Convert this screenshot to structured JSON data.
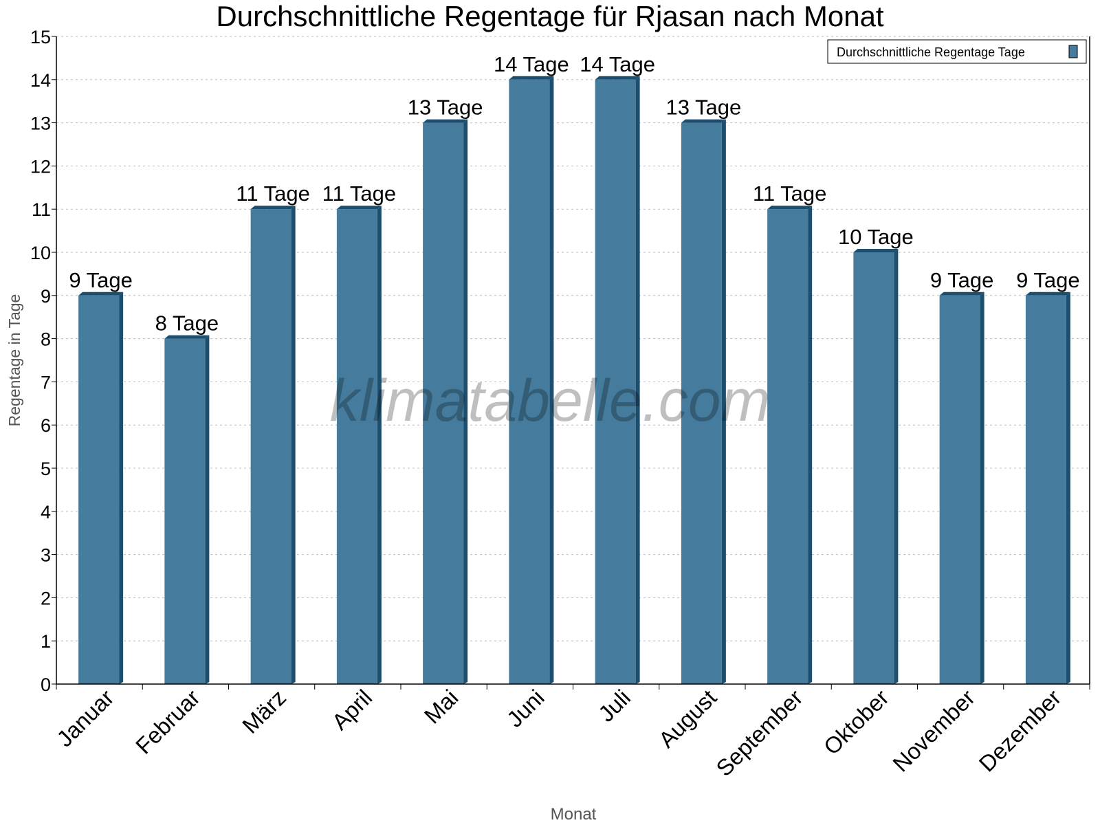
{
  "chart_data": {
    "type": "bar",
    "title": "Durchschnittliche Regentage für Rjasan nach Monat",
    "xlabel": "Monat",
    "ylabel": "Regentage in Tage",
    "ylim": [
      0,
      15
    ],
    "yticks": [
      0,
      1,
      2,
      3,
      4,
      5,
      6,
      7,
      8,
      9,
      10,
      11,
      12,
      13,
      14,
      15
    ],
    "grid": true,
    "legend_position": "top-right",
    "categories": [
      "Januar",
      "Februar",
      "März",
      "April",
      "Mai",
      "Juni",
      "Juli",
      "August",
      "September",
      "Oktober",
      "November",
      "Dezember"
    ],
    "series": [
      {
        "name": "Durchschnittliche Regentage Tage",
        "color": "#457b9d",
        "side_color": "#1d4e6e",
        "values": [
          9,
          8,
          11,
          11,
          13,
          14,
          14,
          13,
          11,
          10,
          9,
          9
        ]
      }
    ],
    "data_labels": [
      "9 Tage",
      "8 Tage",
      "11 Tage",
      "11 Tage",
      "13 Tage",
      "14 Tage",
      "14 Tage",
      "13 Tage",
      "11 Tage",
      "10 Tage",
      "9 Tage",
      "9 Tage"
    ],
    "watermark": "klimatabelle.com"
  }
}
